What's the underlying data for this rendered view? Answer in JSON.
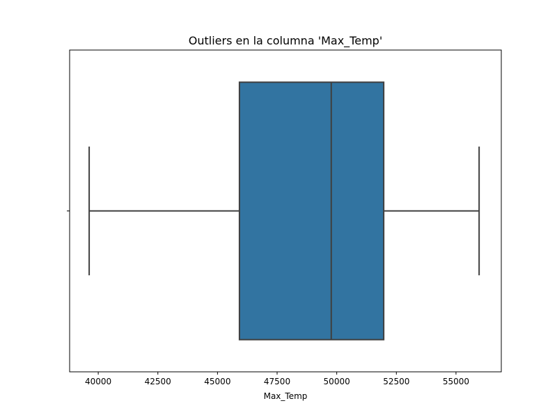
{
  "chart_data": {
    "type": "boxplot",
    "title": "Outliers en la columna 'Max_Temp'",
    "xlabel": "Max_Temp",
    "ylabel": "",
    "orientation": "horizontal",
    "xlim": [
      38800,
      56900
    ],
    "xticks": [
      40000,
      42500,
      45000,
      47500,
      50000,
      52500,
      55000
    ],
    "xtick_labels": [
      "40000",
      "42500",
      "45000",
      "47500",
      "50000",
      "52500",
      "55000"
    ],
    "box": {
      "whisker_low": 39620,
      "q1": 45920,
      "median": 49770,
      "q3": 51970,
      "whisker_high": 55970
    },
    "outliers": [],
    "grid": false,
    "colors": {
      "box_fill": "#3274a1",
      "line": "#3f3f3f",
      "axis": "#000000"
    }
  }
}
